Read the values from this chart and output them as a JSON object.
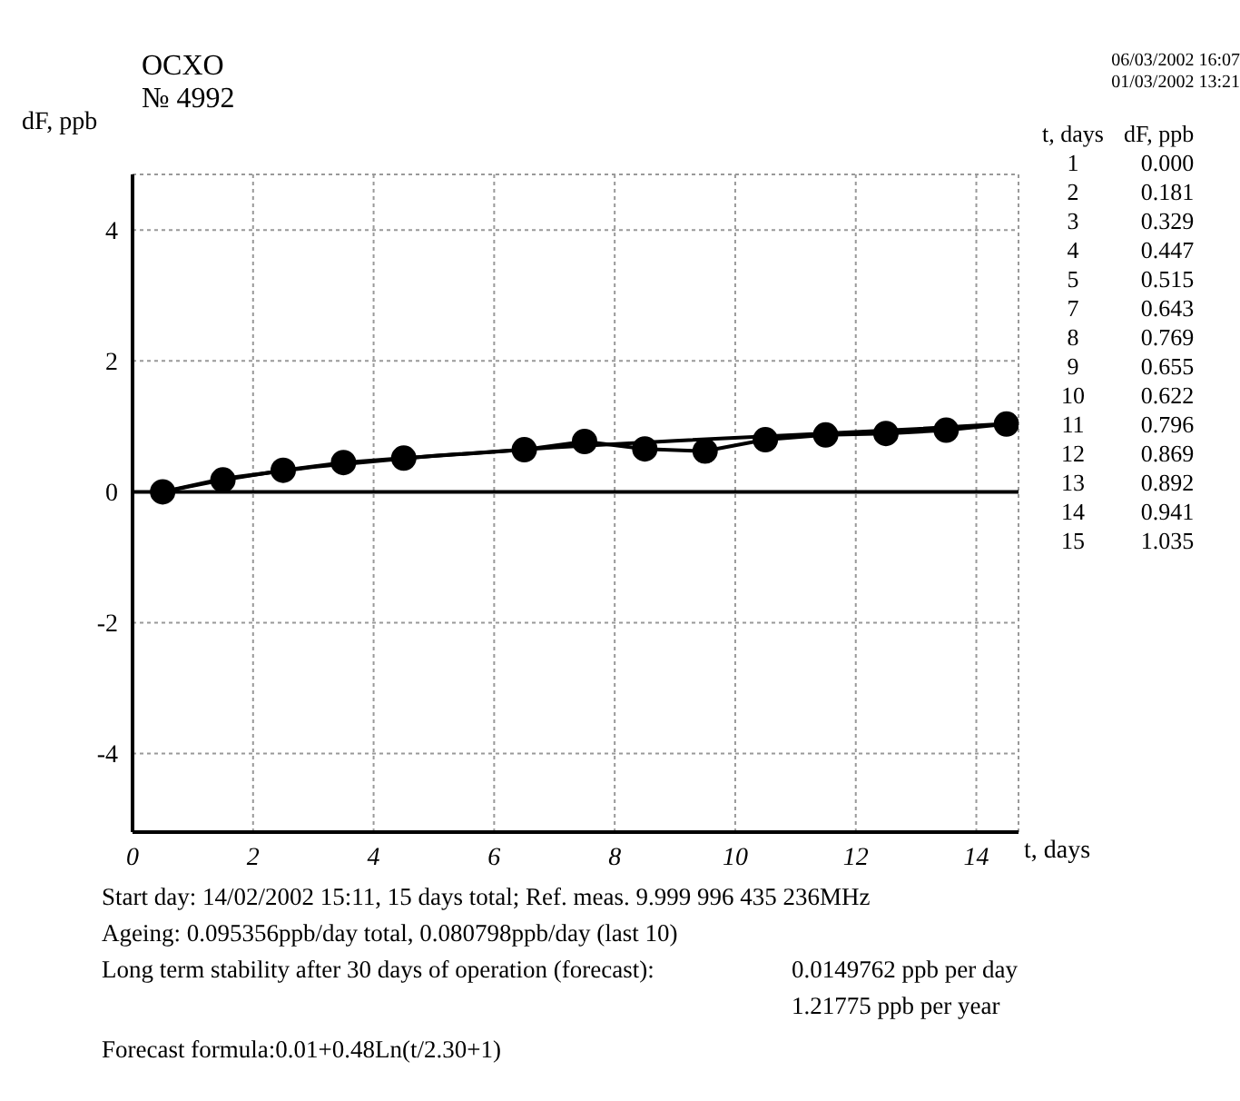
{
  "chart_data": {
    "type": "line",
    "title": "OCXO",
    "subtitle": "№ 4992",
    "xlabel": "t, days",
    "ylabel": "dF, ppb",
    "xlim": [
      0,
      14.7
    ],
    "xticks": [
      0,
      2,
      4,
      6,
      8,
      10,
      12,
      14
    ],
    "ylim": [
      -5.2,
      4.85
    ],
    "yticks": [
      -4,
      -2,
      0,
      2,
      4
    ],
    "grid": true,
    "ref_lines": [
      {
        "axis": "y",
        "value": 0,
        "color": "#000000"
      }
    ],
    "series": [
      {
        "color": "#000000",
        "marker": "circle",
        "x": [
          0.5,
          1.5,
          2.5,
          3.5,
          4.5,
          6.5,
          7.5,
          8.5,
          9.5,
          10.5,
          11.5,
          12.5,
          13.5,
          14.5
        ],
        "values": [
          0.0,
          0.181,
          0.329,
          0.447,
          0.515,
          0.643,
          0.769,
          0.655,
          0.622,
          0.796,
          0.869,
          0.892,
          0.941,
          1.035
        ]
      },
      {
        "color": "#000000",
        "marker": "none",
        "x": [
          0.5,
          1.5,
          3,
          5,
          7,
          9,
          11,
          13,
          14.7
        ],
        "values": [
          0.0,
          0.2,
          0.38,
          0.55,
          0.68,
          0.78,
          0.87,
          0.96,
          1.05
        ]
      }
    ],
    "annotations": [
      "06/03/2002 16:07",
      "01/03/2002 13:21",
      "t, days",
      "dF, ppb",
      "1",
      "0.000",
      "2",
      "0.181",
      "3",
      "0.329",
      "4",
      "0.447",
      "5",
      "0.515",
      "7",
      "0.643",
      "8",
      "0.769",
      "9",
      "0.655",
      "10",
      "0.622",
      "11",
      "0.796",
      "12",
      "0.869",
      "13",
      "0.892",
      "14",
      "0.941",
      "15",
      "1.035",
      "Start day: 14/02/2002 15:11, 15 days total; Ref. meas.  9.999 996 435 236MHz",
      "Ageing: 0.095356ppb/day total, 0.080798ppb/day (last 10)",
      "Long term stability after 30 days of operation (forecast):",
      "0.0149762 ppb per day",
      "1.21775 ppb per year",
      "Forecast formula:0.01+0.48Ln(t/2.30+1)"
    ]
  }
}
